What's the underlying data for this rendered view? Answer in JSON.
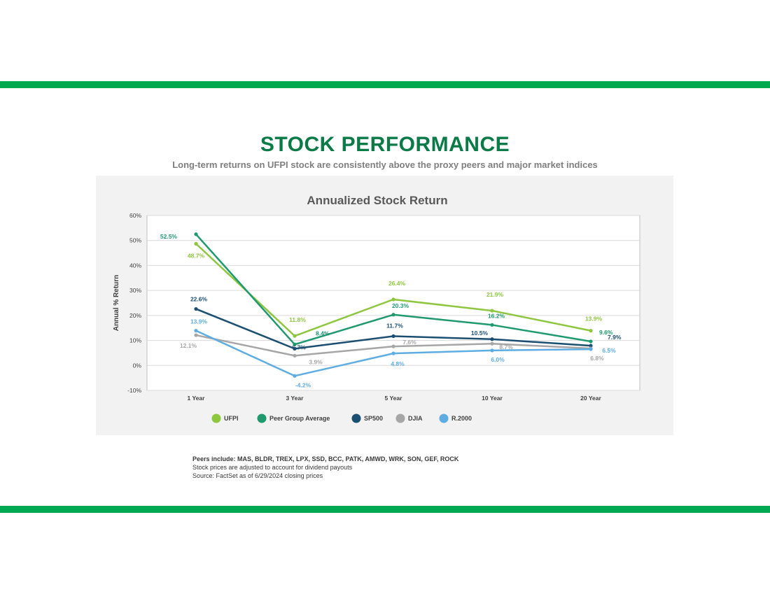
{
  "page": {
    "title": "STOCK PERFORMANCE",
    "subtitle": "Long-term returns on UFPI stock are consistently above the proxy peers and major market indices"
  },
  "colors": {
    "band": "#00a94f",
    "title": "#0a7a46",
    "ufpi": "#8dc63f",
    "peer": "#1f9a6e",
    "sp500": "#1b4f72",
    "djia": "#a6a6a6",
    "r2000": "#5dade2"
  },
  "footnotes": {
    "peers": "Peers include: MAS, BLDR, TREX, LPX, SSD, BCC, PATK, AMWD, WRK, SON, GEF, ROCK",
    "adjusted": "Stock prices are adjusted to account for dividend payouts",
    "source": "Source: FactSet as of 6/29/2024 closing prices"
  },
  "chart_data": {
    "type": "line",
    "title": "Annualized Stock Return",
    "xlabel": "",
    "ylabel": "Annual % Return",
    "categories": [
      "1 Year",
      "3 Year",
      "5 Year",
      "10 Year",
      "20 Year"
    ],
    "ylim": [
      -10,
      60
    ],
    "yticks": [
      -10,
      0,
      10,
      20,
      30,
      40,
      50,
      60
    ],
    "ytick_labels": [
      "-10%",
      "0%",
      "10%",
      "20%",
      "30%",
      "40%",
      "50%",
      "60%"
    ],
    "grid": true,
    "legend_position": "bottom",
    "series": [
      {
        "name": "UFPI",
        "color": "#8dc63f",
        "values": [
          48.7,
          11.8,
          26.4,
          21.9,
          13.9
        ],
        "labels": [
          "48.7%",
          "11.8%",
          "26.4%",
          "21.9%",
          "13.9%"
        ]
      },
      {
        "name": "Peer Group Average",
        "color": "#1f9a6e",
        "values": [
          52.5,
          8.4,
          20.3,
          16.2,
          9.6
        ],
        "labels": [
          "52.5%",
          "8.4%",
          "20.3%",
          "16.2%",
          "9.6%"
        ]
      },
      {
        "name": "SP500",
        "color": "#1b4f72",
        "values": [
          22.6,
          6.7,
          11.7,
          10.5,
          7.9
        ],
        "labels": [
          "22.6%",
          "6.7%",
          "11.7%",
          "10.5%",
          "7.9%"
        ]
      },
      {
        "name": "DJIA",
        "color": "#a6a6a6",
        "values": [
          12.1,
          3.9,
          7.6,
          8.7,
          6.8
        ],
        "labels": [
          "12.1%",
          "3.9%",
          "7.6%",
          "8.7%",
          "6.8%"
        ]
      },
      {
        "name": "R.2000",
        "color": "#5dade2",
        "values": [
          13.9,
          -4.2,
          4.8,
          6.0,
          6.5
        ],
        "labels": [
          "13.9%",
          "-4.2%",
          "4.8%",
          "6.0%",
          "6.5%"
        ]
      }
    ]
  }
}
